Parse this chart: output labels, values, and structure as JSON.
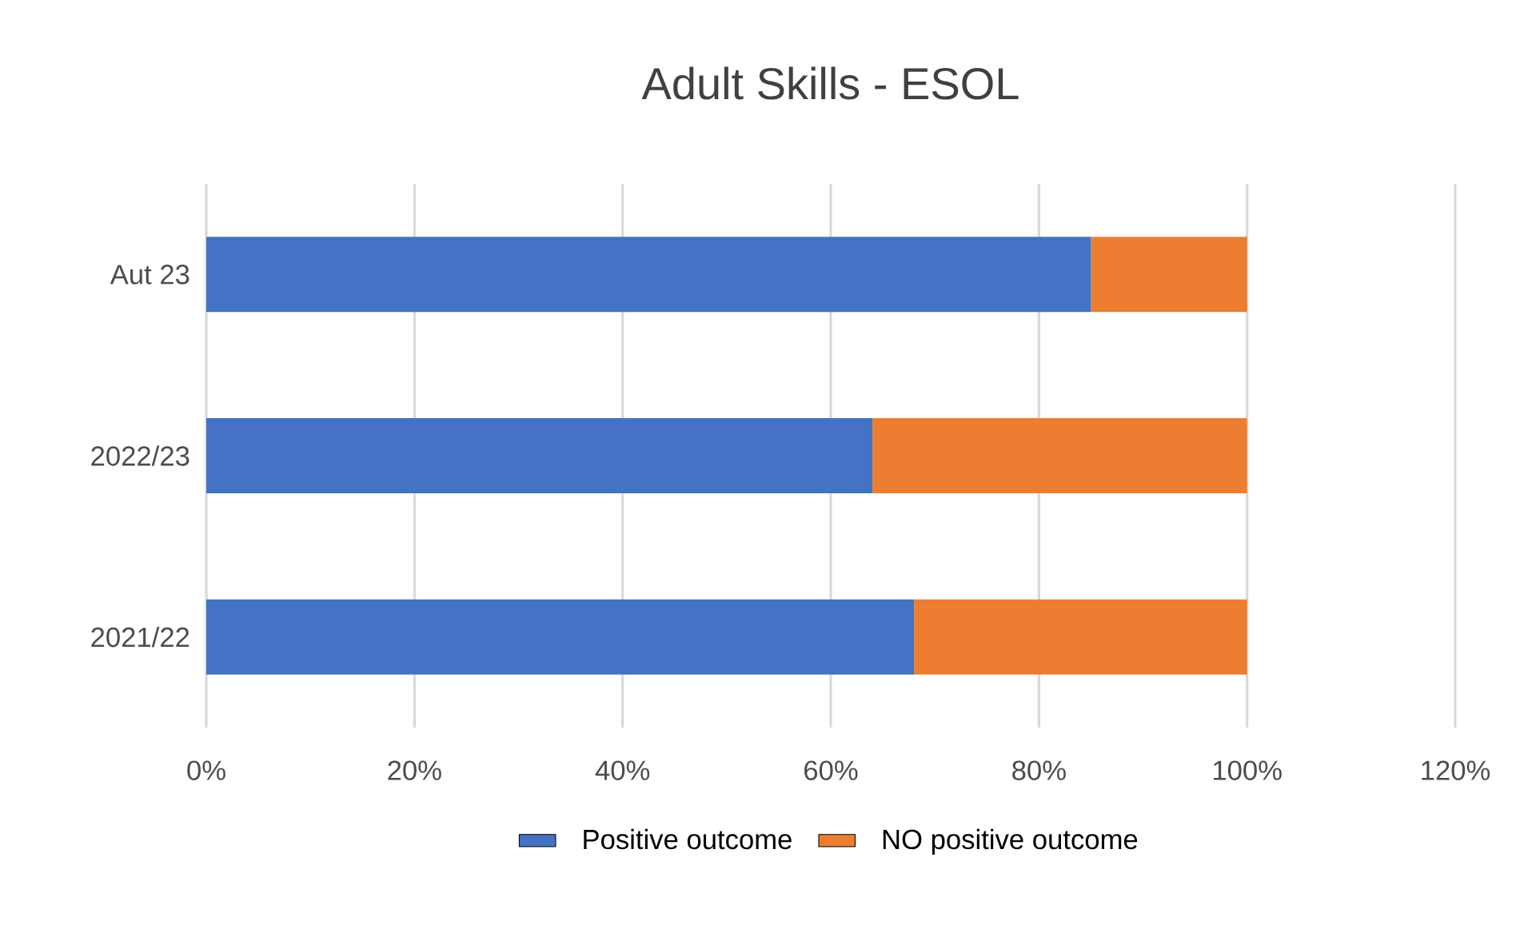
{
  "chart_data": {
    "type": "bar",
    "title": "Adult Skills - ESOL",
    "orientation": "horizontal",
    "stacked": true,
    "categories": [
      "Aut 23",
      "2022/23",
      "2021/22"
    ],
    "series": [
      {
        "name": "Positive outcome",
        "color": "#4472c4",
        "values": [
          85,
          64,
          68
        ]
      },
      {
        "name": "NO positive outcome",
        "color": "#ed7d31",
        "values": [
          15,
          36,
          32
        ]
      }
    ],
    "xlim": [
      0,
      120
    ],
    "xticks": [
      {
        "value": 0,
        "label": "0%"
      },
      {
        "value": 20,
        "label": "20%"
      },
      {
        "value": 40,
        "label": "40%"
      },
      {
        "value": 60,
        "label": "60%"
      },
      {
        "value": 80,
        "label": "80%"
      },
      {
        "value": 100,
        "label": "100%"
      },
      {
        "value": 120,
        "label": "120%"
      }
    ],
    "grid": "x",
    "legend": "bottom"
  }
}
